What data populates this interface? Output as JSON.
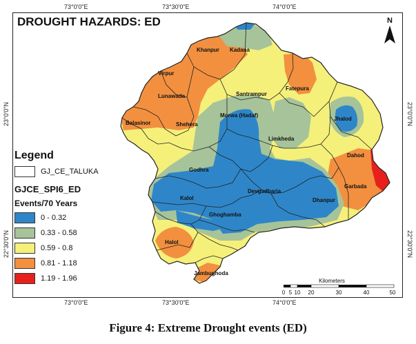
{
  "map": {
    "title": "DROUGHT HAZARDS: ED",
    "caption": "Figure 4: Extreme Drought events (ED)",
    "north_label": "N",
    "colors": {
      "class1": "#2e86c8",
      "class2": "#a7c399",
      "class3": "#f5f07a",
      "class4": "#f29040",
      "class5": "#e8201c",
      "boundary": "#222222"
    }
  },
  "graticule": {
    "lon_top": [
      "73°0'0\"E",
      "73°30'0\"E",
      "74°0'0\"E"
    ],
    "lon_bottom": [
      "73°0'0\"E",
      "73°30'0\"E",
      "74°0'0\"E"
    ],
    "lat_left": [
      "23°0'0\"N",
      "22°30'0\"N"
    ],
    "lat_right": [
      "23°0'0\"N",
      "22°30'0\"N"
    ]
  },
  "legend": {
    "title": "Legend",
    "boundary_label": "GJ_CE_TALUKA",
    "layer_label": "GJCE_SPI6_ED",
    "units_label": "Events/70 Years",
    "classes": [
      {
        "label": "0 - 0.32",
        "color": "#2e86c8"
      },
      {
        "label": "0.33 - 0.58",
        "color": "#a7c399"
      },
      {
        "label": "0.59 - 0.8",
        "color": "#f5f07a"
      },
      {
        "label": "0.81 - 1.18",
        "color": "#f29040"
      },
      {
        "label": "1.19 - 1.96",
        "color": "#e8201c"
      }
    ]
  },
  "talukas": [
    "Khanpur",
    "Kadana",
    "Virpur",
    "Fatepura",
    "Santrampur",
    "Lunawada",
    "Balasinor",
    "Jhalod",
    "Morwa (Hadaf)",
    "Shehera",
    "Limkheda",
    "Dahod",
    "Godhra",
    "Devgadbaria",
    "Garbada",
    "Kalol",
    "Dhanpur",
    "Ghoghamba",
    "Halol",
    "Jambughoda"
  ],
  "scale_bar": {
    "title": "Kilometers",
    "ticks": [
      "0",
      "5",
      "10",
      "20",
      "30",
      "40",
      "50"
    ]
  }
}
